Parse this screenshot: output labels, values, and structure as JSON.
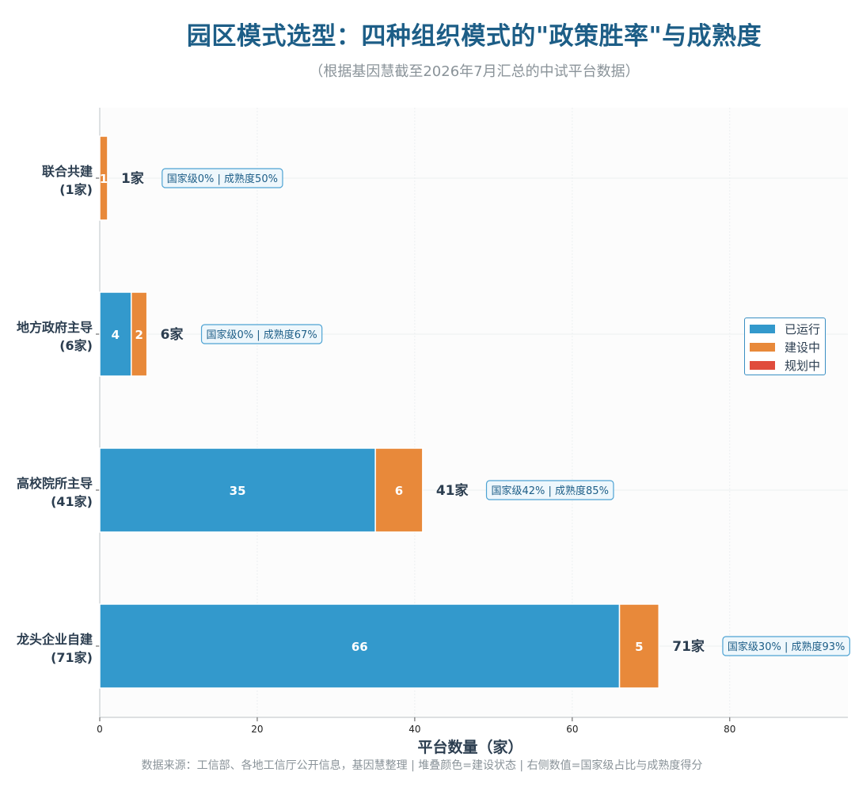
{
  "title": "园区模式选型：四种组织模式的\"政策胜率\"与成熟度",
  "subtitle": "（根据基因慧截至2026年7月汇总的中试平台数据）",
  "footer": "数据来源：工信部、各地工信厅公开信息，基因慧整理 | 堆叠颜色=建设状态 | 右侧数值=国家级占比与成熟度得分",
  "colors": {
    "running": "#3399cc",
    "building": "#e8893a",
    "planning": "#e04c3c",
    "accent": "#1d5e87"
  },
  "chart_data": {
    "type": "bar",
    "orientation": "horizontal",
    "stacked": true,
    "xlabel": "平台数量（家）",
    "xlim": [
      0,
      95
    ],
    "xticks": [
      0,
      20,
      40,
      60,
      80
    ],
    "grid": true,
    "legend_position": "right",
    "categories": [
      {
        "line1": "联合共建",
        "line2": "(1家)"
      },
      {
        "line1": "地方政府主导",
        "line2": "(6家)"
      },
      {
        "line1": "高校院所主导",
        "line2": "(41家)"
      },
      {
        "line1": "龙头企业自建",
        "line2": "(71家)"
      }
    ],
    "series": [
      {
        "name": "已运行",
        "color": "#3399cc",
        "values": [
          0,
          4,
          35,
          66
        ]
      },
      {
        "name": "建设中",
        "color": "#e8893a",
        "values": [
          1,
          2,
          6,
          5
        ]
      },
      {
        "name": "规划中",
        "color": "#e04c3c",
        "values": [
          0,
          0,
          0,
          0
        ]
      }
    ],
    "totals": [
      "1家",
      "6家",
      "41家",
      "71家"
    ],
    "total_values": [
      1,
      6,
      41,
      71
    ],
    "annotations": [
      "国家级0% | 成熟度50%",
      "国家级0% | 成熟度67%",
      "国家级42% | 成熟度85%",
      "国家级30% | 成熟度93%"
    ]
  }
}
